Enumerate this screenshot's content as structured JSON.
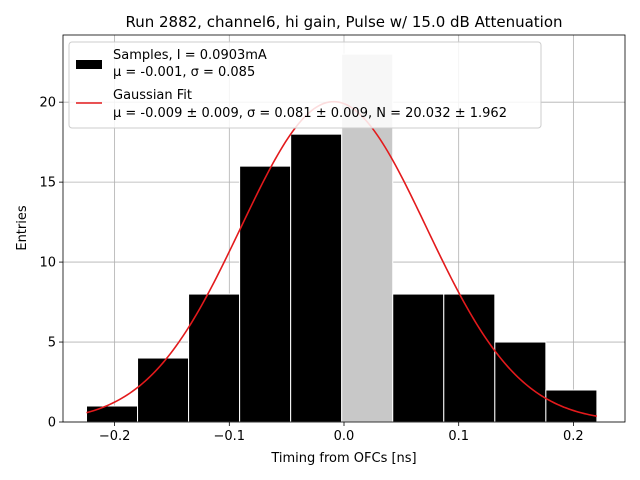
{
  "chart_data": {
    "type": "bar",
    "title": "Run 2882, channel6, hi gain, Pulse w/ 15.0 dB Attenuation",
    "xlabel": "Timing from OFCs [ns]",
    "ylabel": "Entries",
    "xlim": [
      -0.245,
      0.245
    ],
    "ylim": [
      0,
      24.2
    ],
    "xticks": [
      -0.2,
      -0.1,
      0.0,
      0.1,
      0.2
    ],
    "xtick_labels": [
      "−0.2",
      "−0.1",
      "0.0",
      "0.1",
      "0.2"
    ],
    "yticks": [
      0,
      5,
      10,
      15,
      20
    ],
    "ytick_labels": [
      "0",
      "5",
      "10",
      "15",
      "20"
    ],
    "grid": true,
    "legend_position": "top-left",
    "histogram": {
      "bin_edges": [
        -0.2245,
        -0.18,
        -0.1355,
        -0.091,
        -0.0465,
        -0.002,
        0.0425,
        0.087,
        0.1315,
        0.176,
        0.2205
      ],
      "counts": [
        1,
        4,
        8,
        16,
        18,
        23,
        8,
        8,
        5,
        2
      ],
      "bar_color": "#000000",
      "edge_color": "#ffffff",
      "highlight_bin_index": 5,
      "highlight_color": "#c8c8c8"
    },
    "gaussian_fit": {
      "mu": -0.009,
      "sigma": 0.081,
      "N": 20.032,
      "x_range": [
        -0.2245,
        0.2205
      ],
      "color": "#e31a1c"
    },
    "legend": [
      {
        "name": "Samples, I = 0.0903mA",
        "detail": "μ = -0.001, σ = 0.085",
        "marker": "box"
      },
      {
        "name": "Gaussian Fit",
        "detail": "μ = -0.009 ± 0.009, σ = 0.081 ± 0.009, N = 20.032 ± 1.962",
        "marker": "line"
      }
    ]
  }
}
